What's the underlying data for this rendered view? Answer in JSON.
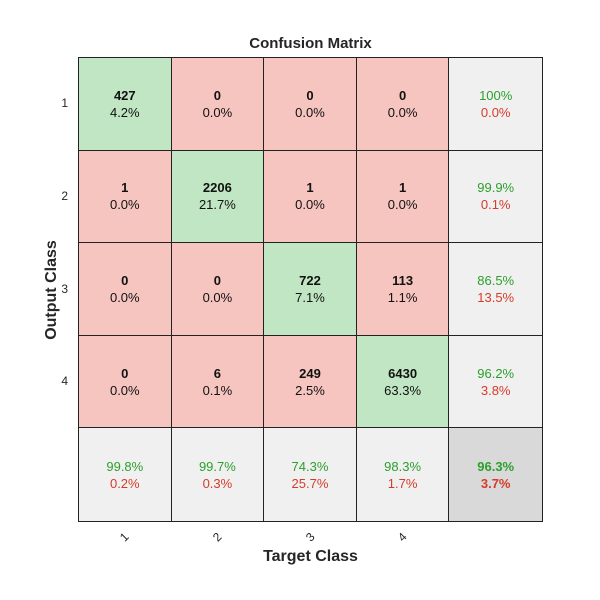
{
  "chart_data": {
    "type": "heatmap",
    "title": "Confusion Matrix",
    "xlabel": "Target Class",
    "ylabel": "Output Class",
    "x_tick_labels": [
      "1",
      "2",
      "3",
      "4"
    ],
    "y_tick_labels": [
      "1",
      "2",
      "3",
      "4"
    ],
    "matrix_counts": [
      [
        427,
        0,
        0,
        0
      ],
      [
        1,
        2206,
        1,
        1
      ],
      [
        0,
        0,
        722,
        113
      ],
      [
        0,
        6,
        249,
        6430
      ]
    ],
    "matrix_percents": [
      [
        "4.2%",
        "0.0%",
        "0.0%",
        "0.0%"
      ],
      [
        "0.0%",
        "21.7%",
        "0.0%",
        "0.0%"
      ],
      [
        "0.0%",
        "0.0%",
        "7.1%",
        "1.1%"
      ],
      [
        "0.0%",
        "0.1%",
        "2.5%",
        "63.3%"
      ]
    ],
    "row_summary": [
      {
        "correct": "100%",
        "error": "0.0%"
      },
      {
        "correct": "99.9%",
        "error": "0.1%"
      },
      {
        "correct": "86.5%",
        "error": "13.5%"
      },
      {
        "correct": "96.2%",
        "error": "3.8%"
      }
    ],
    "col_summary": [
      {
        "correct": "99.8%",
        "error": "0.2%"
      },
      {
        "correct": "99.7%",
        "error": "0.3%"
      },
      {
        "correct": "74.3%",
        "error": "25.7%"
      },
      {
        "correct": "98.3%",
        "error": "1.7%"
      }
    ],
    "overall": {
      "correct": "96.3%",
      "error": "3.7%"
    },
    "colors": {
      "diagonal": "#c0e6c3",
      "off_diagonal": "#f6c5c0",
      "summary": "#f0f0f0",
      "overall": "#d9d9d9",
      "correct_text": "#2ca02c",
      "error_text": "#d63b2a"
    }
  }
}
